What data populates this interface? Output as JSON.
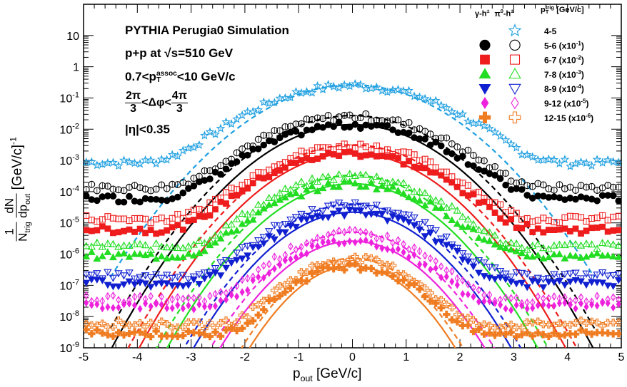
{
  "chart_data": {
    "type": "scatter",
    "title": "PYTHIA Perugia0 Simulation",
    "annotations": {
      "system": "p+p at",
      "sqrt_s": "√s=510 GeV",
      "assoc_range": {
        "low": "0.7<p",
        "sup": "assoc",
        "sub": "T",
        "high": "<10 GeV/c"
      },
      "dphi": {
        "num1": "2π",
        "den1": "3",
        "mid": "<Δφ<",
        "num2": "4π",
        "den2": "3"
      },
      "eta": "|η|<0.35"
    },
    "xlabel": "p",
    "xlabel_sub": "out",
    "xlabel_unit": "[GeV/c]",
    "ylabel": {
      "lead": "1",
      "ntrig": "N",
      "ntrig_sub": "trig",
      "dn": "dN",
      "dp": "dp",
      "dp_sub": "out",
      "unit": "[GeV/c]",
      "unit_sup": "-1"
    },
    "xlim": [
      -5,
      5
    ],
    "ylim": [
      1e-09,
      100
    ],
    "yscale": "log",
    "xticks": [
      "-5",
      "-4",
      "-3",
      "-2",
      "-1",
      "0",
      "1",
      "2",
      "3",
      "4",
      "5"
    ],
    "yticks": [
      {
        "base": "10",
        "exp": "-9"
      },
      {
        "base": "10",
        "exp": "-8"
      },
      {
        "base": "10",
        "exp": "-7"
      },
      {
        "base": "10",
        "exp": "-6"
      },
      {
        "base": "10",
        "exp": "-5"
      },
      {
        "base": "10",
        "exp": "-4"
      },
      {
        "base": "10",
        "exp": "-3"
      },
      {
        "base": "10",
        "exp": "-2"
      },
      {
        "base": "10",
        "exp": "-1"
      },
      {
        "base": "1",
        "exp": ""
      },
      {
        "base": "10",
        "exp": ""
      }
    ],
    "legend": {
      "placement": "top-right",
      "header_gamma": "γ-h",
      "header_gamma_sup": "±",
      "header_pi0": "π",
      "header_pi0_sup": "0",
      "header_pi0_tail": "-h",
      "header_pi0_sup2": "±",
      "header_pt": "p",
      "header_pt_sup": "trig",
      "header_pt_sub": "T",
      "header_pt_unit": "[GeV/c]",
      "rows": [
        "4-5",
        "5-6 (x10",
        "6-7 (x10",
        "7-8 (x10",
        "8-9 (x10",
        "9-12 (x10",
        "12-15 (x10"
      ],
      "row_exps": [
        "",
        "-1",
        "-2",
        "-3",
        "-4",
        "-5",
        "-6"
      ]
    },
    "series": [
      {
        "bin": "4-5",
        "color": "#1e9fe0",
        "pi0_marker": "star-open",
        "gamma_marker": "",
        "scale": 1,
        "peak": 0.25,
        "sigma": 0.82,
        "tail_level": 0.00055,
        "fit": "dashed"
      },
      {
        "bin": "5-6",
        "color": "#000000",
        "gamma_marker": "circle-filled",
        "pi0_marker": "circle-open",
        "scale": 0.1,
        "peak_gamma": 0.014,
        "peak_pi0": 0.026,
        "sigma": 0.78,
        "tail_level_gamma": 4e-05,
        "tail_level_pi0": 9e-05
      },
      {
        "bin": "6-7",
        "color": "#ee1c1c",
        "gamma_marker": "square-filled",
        "pi0_marker": "square-open",
        "scale": 0.01,
        "peak_gamma": 0.0017,
        "peak_pi0": 0.003,
        "sigma": 0.74,
        "tail_level_gamma": 4e-06,
        "tail_level_pi0": 9e-06
      },
      {
        "bin": "7-8",
        "color": "#22dd22",
        "gamma_marker": "triangle-up-filled",
        "pi0_marker": "triangle-up-open",
        "scale": 0.001,
        "peak_gamma": 0.00018,
        "peak_pi0": 0.00032,
        "sigma": 0.7,
        "tail_level_gamma": 6e-07,
        "tail_level_pi0": 1.2e-06
      },
      {
        "bin": "8-9",
        "color": "#1020d0",
        "gamma_marker": "triangle-down-filled",
        "pi0_marker": "triangle-down-open",
        "scale": 0.0001,
        "peak_gamma": 2.2e-05,
        "peak_pi0": 3.8e-05,
        "sigma": 0.66,
        "tail_level_gamma": 8e-08,
        "tail_level_pi0": 1.4e-07
      },
      {
        "bin": "9-12",
        "color": "#ee22dd",
        "gamma_marker": "diamond-filled",
        "pi0_marker": "diamond-open",
        "scale": 1e-05,
        "peak_gamma": 2.6e-06,
        "peak_pi0": 4.8e-06,
        "sigma": 0.62,
        "tail_level_gamma": 1.5e-08,
        "tail_level_pi0": 2.5e-08
      },
      {
        "bin": "12-15",
        "color": "#f07c22",
        "gamma_marker": "cross-filled",
        "pi0_marker": "cross-open",
        "scale": 1e-06,
        "peak_gamma": 4.2e-07,
        "peak_pi0": 7e-07,
        "sigma": 0.55,
        "tail_level_gamma": 2e-09,
        "tail_level_pi0": 4e-09
      }
    ]
  }
}
